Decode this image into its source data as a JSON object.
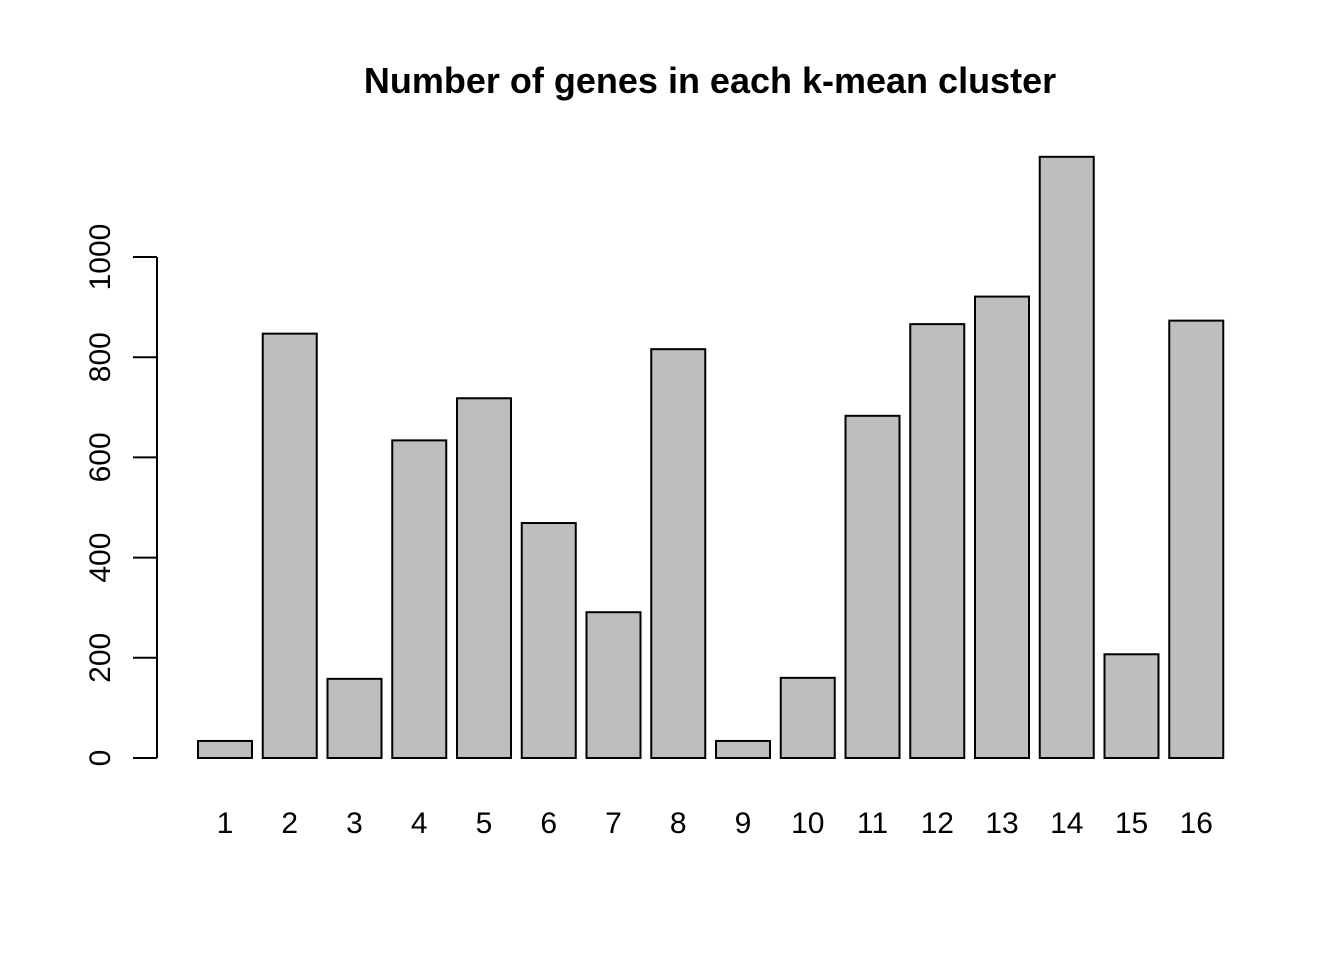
{
  "chart_data": {
    "type": "bar",
    "title": "Number of genes in each k-mean cluster",
    "xlabel": "",
    "ylabel": "",
    "categories": [
      "1",
      "2",
      "3",
      "4",
      "5",
      "6",
      "7",
      "8",
      "9",
      "10",
      "11",
      "12",
      "13",
      "14",
      "15",
      "16"
    ],
    "values": [
      34,
      847,
      158,
      634,
      718,
      469,
      291,
      816,
      34,
      160,
      683,
      866,
      921,
      1200,
      207,
      873
    ],
    "yticks": [
      0,
      200,
      400,
      600,
      800,
      1000
    ],
    "ytick_labels": [
      "0",
      "200",
      "400",
      "600",
      "800",
      "1000"
    ],
    "ylim": [
      0,
      1200
    ],
    "grid": false,
    "bar_color": "#bebebe",
    "edge_color": "#000000"
  }
}
